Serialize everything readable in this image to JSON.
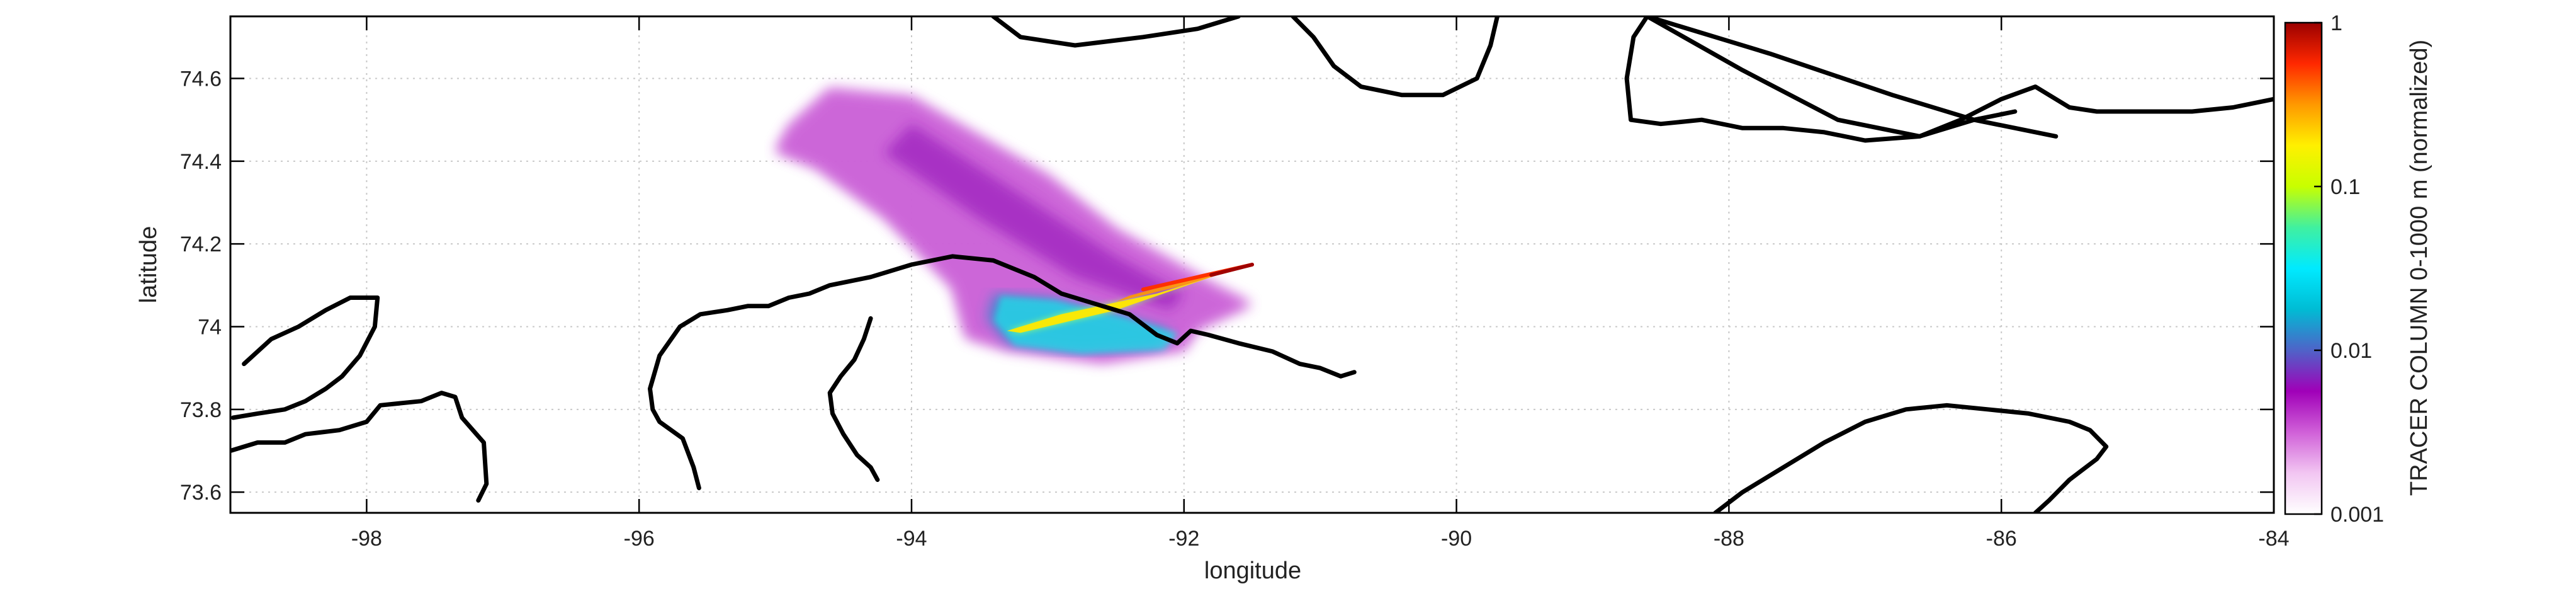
{
  "chart_data": {
    "type": "heatmap",
    "title": "",
    "xlabel": "longitude",
    "ylabel": "latitude",
    "xlim": [
      -99,
      -84
    ],
    "ylim": [
      73.55,
      74.75
    ],
    "xticks": [
      -98,
      -96,
      -94,
      -92,
      -90,
      -88,
      -86,
      -84
    ],
    "yticks": [
      73.6,
      73.8,
      74,
      74.2,
      74.4,
      74.6
    ],
    "xtick_labels": [
      "-98",
      "-96",
      "-94",
      "-92",
      "-90",
      "-88",
      "-86",
      "-84"
    ],
    "ytick_labels": [
      "73.6",
      "73.8",
      "74",
      "74.2",
      "74.4",
      "74.6"
    ],
    "grid": true,
    "colorbar": {
      "label": "TRACER COLUMN 0-1000 m (normalized)",
      "scale": "log",
      "range": [
        0.001,
        1
      ],
      "ticks": [
        0.001,
        0.01,
        0.1,
        1
      ],
      "tick_labels": [
        "0.001",
        "0.01",
        "0.1",
        "1"
      ],
      "colors": [
        "#ffffff",
        "#f2c6f2",
        "#d060d8",
        "#a000b8",
        "#4f63c8",
        "#00bcd4",
        "#00eaff",
        "#40f0a0",
        "#c8ff00",
        "#fff000",
        "#ff9900",
        "#ff2800",
        "#9b0000"
      ]
    },
    "plume": {
      "source": [
        -91.5,
        74.15
      ],
      "outer_envelope": [
        [
          -94.9,
          74.49
        ],
        [
          -94.6,
          74.58
        ],
        [
          -94.0,
          74.56
        ],
        [
          -93.0,
          74.37
        ],
        [
          -92.5,
          74.24
        ],
        [
          -91.8,
          74.11
        ],
        [
          -91.5,
          74.06
        ],
        [
          -91.9,
          74.0
        ],
        [
          -92.0,
          73.95
        ],
        [
          -92.6,
          73.92
        ],
        [
          -93.3,
          73.95
        ],
        [
          -93.6,
          73.98
        ],
        [
          -93.7,
          74.1
        ],
        [
          -94.2,
          74.27
        ],
        [
          -94.7,
          74.39
        ],
        [
          -95.0,
          74.43
        ]
      ],
      "mid_band": [
        [
          -94.0,
          74.49
        ],
        [
          -93.2,
          74.32
        ],
        [
          -92.5,
          74.17
        ],
        [
          -92.0,
          74.08
        ],
        [
          -92.1,
          74.04
        ],
        [
          -92.8,
          74.12
        ],
        [
          -93.5,
          74.26
        ],
        [
          -94.2,
          74.42
        ]
      ],
      "southern_patch": [
        [
          -93.45,
          74.02
        ],
        [
          -93.4,
          74.08
        ],
        [
          -93.0,
          74.07
        ],
        [
          -92.5,
          74.03
        ],
        [
          -92.1,
          73.99
        ],
        [
          -92.2,
          73.95
        ],
        [
          -92.8,
          73.94
        ],
        [
          -93.3,
          73.96
        ]
      ],
      "streak_core": [
        [
          -91.5,
          74.15
        ],
        [
          -92.2,
          74.08
        ],
        [
          -92.9,
          74.03
        ],
        [
          -93.3,
          73.99
        ],
        [
          -93.2,
          73.985
        ],
        [
          -92.5,
          74.04
        ],
        [
          -91.8,
          74.12
        ]
      ],
      "streak_spur": [
        [
          -91.5,
          74.15
        ],
        [
          -92.0,
          74.1
        ],
        [
          -92.5,
          74.06
        ],
        [
          -92.4,
          74.075
        ],
        [
          -91.9,
          74.12
        ]
      ]
    },
    "coastlines": [
      [
        [
          -98.9,
          73.91
        ],
        [
          -98.7,
          73.97
        ],
        [
          -98.5,
          74.0
        ],
        [
          -98.3,
          74.04
        ],
        [
          -98.12,
          74.07
        ],
        [
          -97.92,
          74.07
        ],
        [
          -97.94,
          74.0
        ],
        [
          -98.05,
          73.93
        ],
        [
          -98.18,
          73.88
        ],
        [
          -98.3,
          73.85
        ],
        [
          -98.45,
          73.82
        ],
        [
          -98.6,
          73.8
        ],
        [
          -98.8,
          73.79
        ],
        [
          -98.98,
          73.78
        ]
      ],
      [
        [
          -99.0,
          73.7
        ],
        [
          -98.8,
          73.72
        ],
        [
          -98.6,
          73.72
        ],
        [
          -98.45,
          73.74
        ],
        [
          -98.2,
          73.75
        ],
        [
          -98.0,
          73.77
        ],
        [
          -97.9,
          73.81
        ],
        [
          -97.6,
          73.82
        ],
        [
          -97.45,
          73.84
        ],
        [
          -97.35,
          73.83
        ],
        [
          -97.3,
          73.78
        ],
        [
          -97.14,
          73.72
        ],
        [
          -97.12,
          73.62
        ],
        [
          -97.18,
          73.58
        ]
      ],
      [
        [
          -95.56,
          73.61
        ],
        [
          -95.6,
          73.66
        ],
        [
          -95.68,
          73.73
        ],
        [
          -95.85,
          73.77
        ],
        [
          -95.9,
          73.8
        ],
        [
          -95.92,
          73.85
        ],
        [
          -95.85,
          73.93
        ],
        [
          -95.7,
          74.0
        ],
        [
          -95.55,
          74.03
        ],
        [
          -95.35,
          74.04
        ],
        [
          -95.2,
          74.05
        ],
        [
          -95.05,
          74.05
        ],
        [
          -94.9,
          74.07
        ],
        [
          -94.75,
          74.08
        ],
        [
          -94.6,
          74.1
        ],
        [
          -94.3,
          74.12
        ],
        [
          -94.0,
          74.15
        ],
        [
          -93.7,
          74.17
        ],
        [
          -93.4,
          74.16
        ],
        [
          -93.1,
          74.12
        ],
        [
          -92.9,
          74.08
        ],
        [
          -92.6,
          74.05
        ],
        [
          -92.4,
          74.03
        ],
        [
          -92.2,
          73.98
        ],
        [
          -92.05,
          73.96
        ],
        [
          -91.95,
          73.99
        ],
        [
          -91.82,
          73.98
        ],
        [
          -91.6,
          73.96
        ],
        [
          -91.35,
          73.94
        ],
        [
          -91.15,
          73.91
        ],
        [
          -91.0,
          73.9
        ],
        [
          -90.85,
          73.88
        ],
        [
          -90.75,
          73.89
        ]
      ],
      [
        [
          -94.25,
          73.63
        ],
        [
          -94.3,
          73.66
        ],
        [
          -94.4,
          73.69
        ],
        [
          -94.5,
          73.74
        ],
        [
          -94.58,
          73.79
        ],
        [
          -94.6,
          73.84
        ],
        [
          -94.52,
          73.88
        ],
        [
          -94.42,
          73.92
        ],
        [
          -94.35,
          73.97
        ],
        [
          -94.3,
          74.02
        ]
      ],
      [
        [
          -88.1,
          73.55
        ],
        [
          -87.9,
          73.6
        ],
        [
          -87.6,
          73.66
        ],
        [
          -87.3,
          73.72
        ],
        [
          -87.0,
          73.77
        ],
        [
          -86.7,
          73.8
        ],
        [
          -86.4,
          73.81
        ],
        [
          -86.1,
          73.8
        ],
        [
          -85.8,
          73.79
        ],
        [
          -85.5,
          73.77
        ],
        [
          -85.35,
          73.75
        ],
        [
          -85.23,
          73.71
        ],
        [
          -85.3,
          73.68
        ],
        [
          -85.5,
          73.63
        ],
        [
          -85.65,
          73.58
        ],
        [
          -85.75,
          73.55
        ]
      ],
      [
        [
          -93.4,
          74.75
        ],
        [
          -93.2,
          74.7
        ],
        [
          -92.8,
          74.68
        ],
        [
          -92.3,
          74.7
        ],
        [
          -91.9,
          74.72
        ],
        [
          -91.6,
          74.75
        ]
      ],
      [
        [
          -91.2,
          74.75
        ],
        [
          -91.05,
          74.7
        ],
        [
          -90.9,
          74.63
        ],
        [
          -90.7,
          74.58
        ],
        [
          -90.4,
          74.56
        ],
        [
          -90.1,
          74.56
        ],
        [
          -89.85,
          74.6
        ],
        [
          -89.75,
          74.68
        ],
        [
          -89.7,
          74.75
        ]
      ],
      [
        [
          -88.6,
          74.75
        ],
        [
          -88.7,
          74.7
        ],
        [
          -88.75,
          74.6
        ],
        [
          -88.72,
          74.5
        ],
        [
          -88.5,
          74.49
        ],
        [
          -88.2,
          74.5
        ],
        [
          -87.9,
          74.48
        ],
        [
          -87.6,
          74.48
        ],
        [
          -87.3,
          74.47
        ],
        [
          -87.0,
          74.45
        ],
        [
          -86.6,
          74.46
        ],
        [
          -86.3,
          74.5
        ],
        [
          -86.0,
          74.55
        ],
        [
          -85.75,
          74.58
        ],
        [
          -85.5,
          74.53
        ],
        [
          -85.3,
          74.52
        ],
        [
          -84.95,
          74.52
        ],
        [
          -84.6,
          74.52
        ],
        [
          -84.3,
          74.53
        ],
        [
          -84.0,
          74.55
        ]
      ],
      [
        [
          -88.6,
          74.75
        ],
        [
          -87.9,
          74.62
        ],
        [
          -87.2,
          74.5
        ],
        [
          -86.6,
          74.46
        ],
        [
          -86.2,
          74.5
        ],
        [
          -85.9,
          74.52
        ]
      ],
      [
        [
          -88.6,
          74.75
        ],
        [
          -87.7,
          74.66
        ],
        [
          -86.8,
          74.56
        ],
        [
          -86.2,
          74.5
        ],
        [
          -85.6,
          74.46
        ]
      ]
    ]
  }
}
